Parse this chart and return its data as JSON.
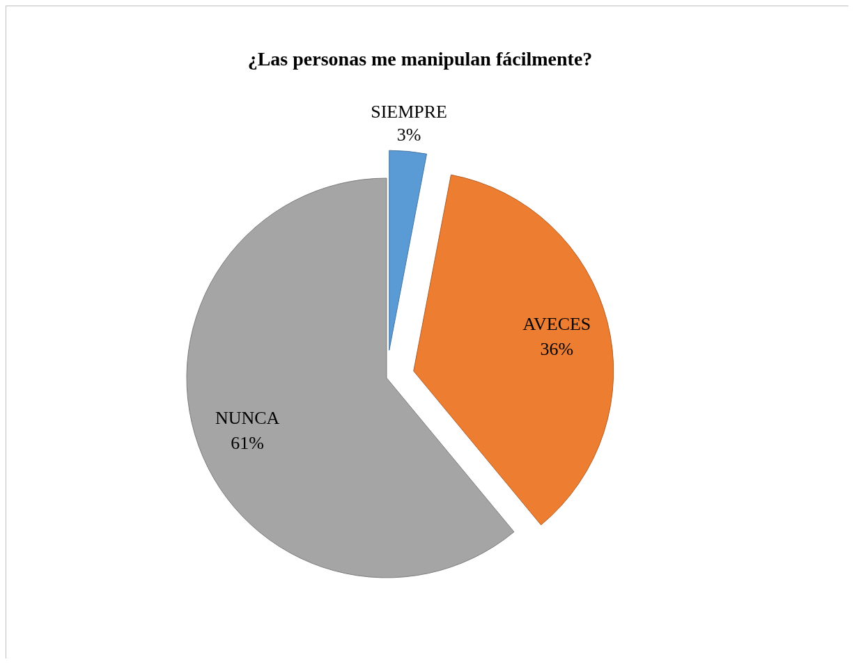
{
  "chart_data": {
    "type": "pie",
    "title": "¿Las personas me manipulan fácilmente?",
    "categories": [
      "SIEMPRE",
      "AVECES",
      "NUNCA"
    ],
    "values": [
      3,
      36,
      61
    ],
    "value_labels": [
      "3%",
      "36%",
      "61%"
    ],
    "colors": [
      "#5b9bd5",
      "#ed7d31",
      "#a5a5a5"
    ],
    "legend": false
  }
}
